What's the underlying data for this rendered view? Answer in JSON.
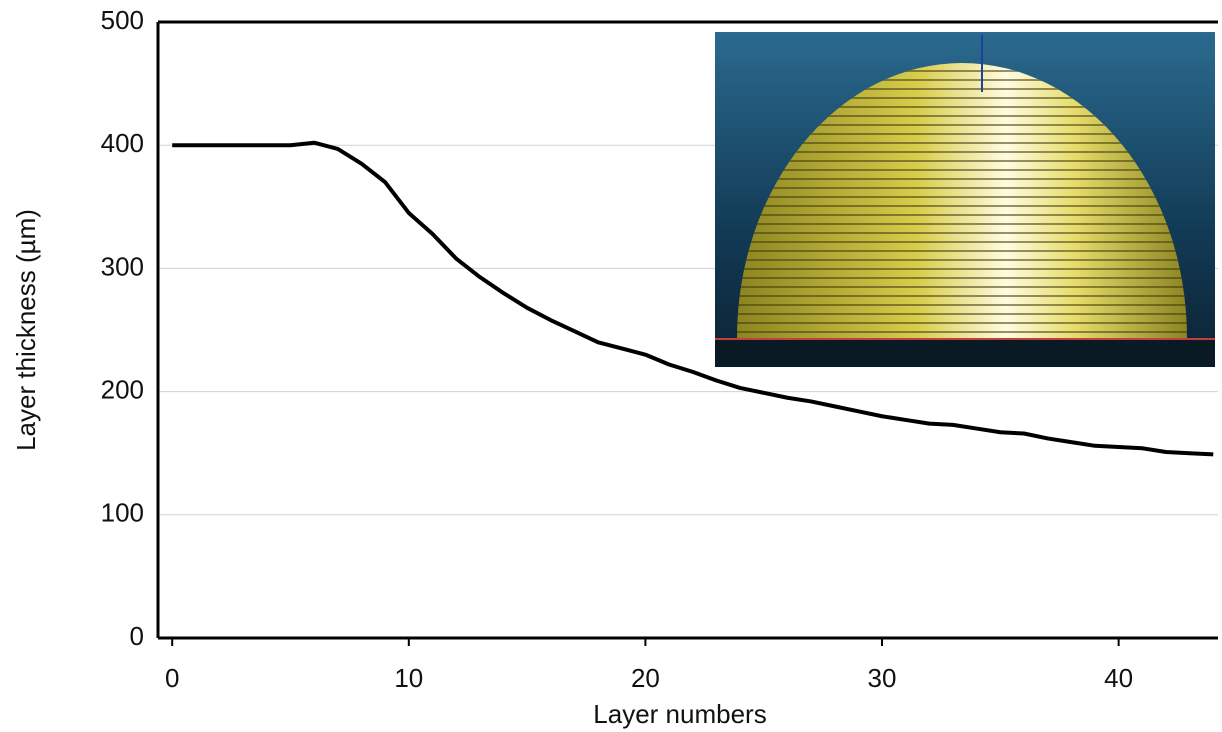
{
  "chart_data": {
    "type": "line",
    "x_label": "Layer numbers",
    "y_label": "Layer thickness (µm)",
    "x": [
      0,
      1,
      2,
      3,
      4,
      5,
      6,
      7,
      8,
      9,
      10,
      11,
      12,
      13,
      14,
      15,
      16,
      17,
      18,
      19,
      20,
      21,
      22,
      23,
      24,
      25,
      26,
      27,
      28,
      29,
      30,
      31,
      32,
      33,
      34,
      35,
      36,
      37,
      38,
      39,
      40,
      41,
      42,
      43,
      44
    ],
    "series": [
      {
        "name": null,
        "color": "#000000",
        "values": [
          400,
          400,
          400,
          400,
          400,
          400,
          402,
          397,
          385,
          370,
          345,
          328,
          308,
          293,
          280,
          268,
          258,
          249,
          240,
          235,
          230,
          222,
          216,
          209,
          203,
          199,
          195,
          192,
          188,
          184,
          180,
          177,
          174,
          173,
          170,
          167,
          166,
          162,
          159,
          156,
          155,
          154,
          151,
          150,
          149
        ]
      }
    ],
    "xlim": [
      -0.6,
      44.2
    ],
    "xticks": [
      0,
      10,
      20,
      30,
      40
    ],
    "ylim": [
      0,
      500
    ],
    "yticks": [
      0,
      100,
      200,
      300,
      400,
      500
    ],
    "grid": true
  }
}
